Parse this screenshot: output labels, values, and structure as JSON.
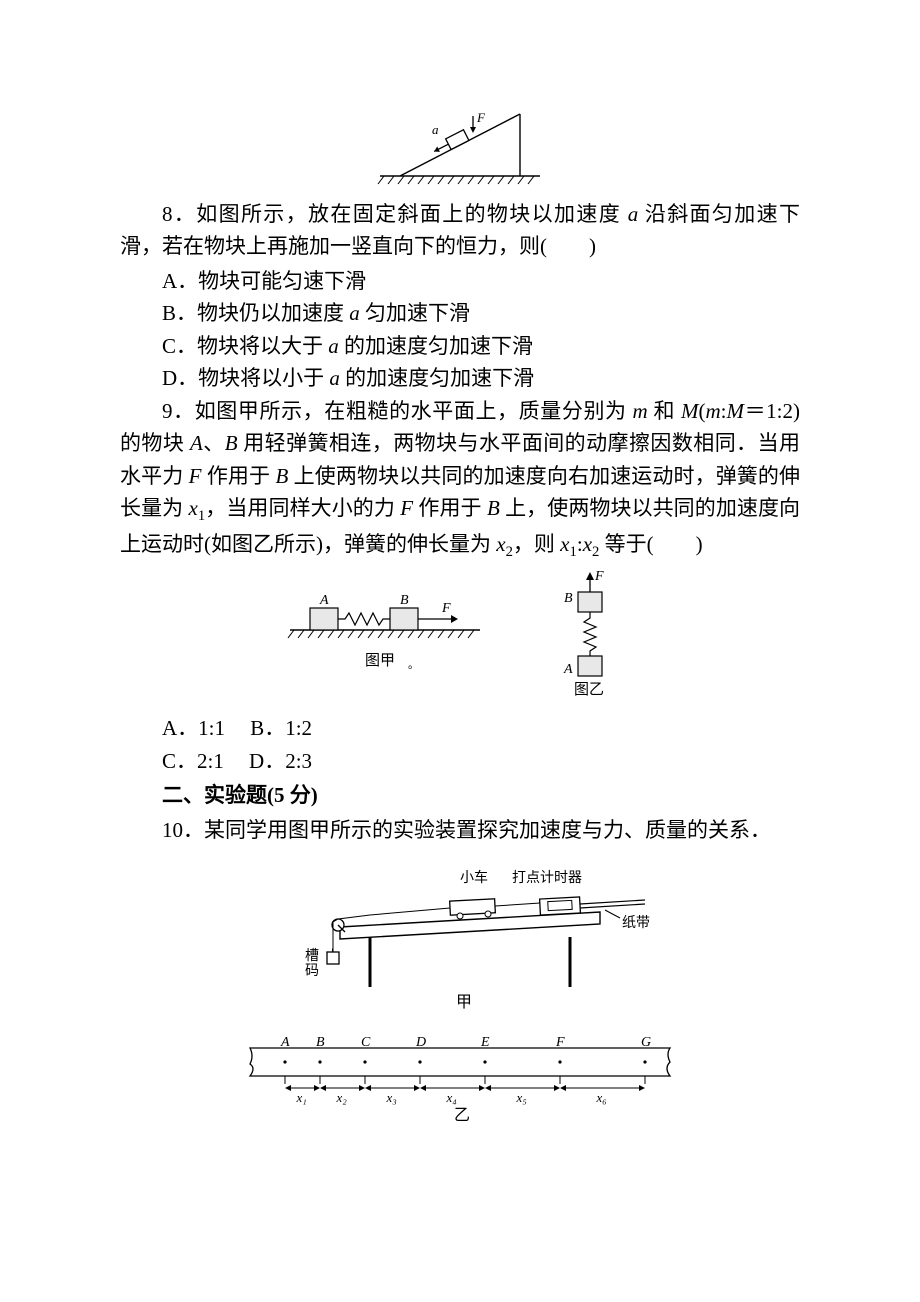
{
  "colors": {
    "text": "#000000",
    "background": "#ffffff",
    "stroke": "#000000",
    "fill_gray": "#ffffff"
  },
  "fonts": {
    "body_family": "SimSun, serif",
    "body_size_pt": 16,
    "caption_size_pt": 13,
    "italic_family": "Times New Roman, serif"
  },
  "fig8": {
    "labels": {
      "a": "a",
      "F": "F"
    }
  },
  "q8": {
    "stem_prefix": "8．如图所示，放在固定斜面上的物块以加速度 ",
    "a": "a",
    "stem_mid": " 沿斜面匀加速下滑，若在物块上再施加一竖直向下的恒力，则(　　)",
    "A_prefix": "A．物块可能匀速下滑",
    "B_prefix": "B．物块仍以加速度 ",
    "B_suffix": " 匀加速下滑",
    "C_prefix": "C．物块将以大于 ",
    "C_suffix": " 的加速度匀加速下滑",
    "D_prefix": "D．物块将以小于 ",
    "D_suffix": " 的加速度匀加速下滑"
  },
  "q9": {
    "p1": "9．如图甲所示，在粗糙的水平面上，质量分别为 ",
    "m": "m",
    "and": " 和 ",
    "M": "M",
    "ratio_open": "(",
    "ratio_body": ":",
    "ratio_val": "＝1:2)",
    "p2": "的物块 ",
    "Aname": "A",
    "p3": "、",
    "Bname": "B",
    "p4": " 用轻弹簧相连，两物块与水平面间的动摩擦因数相同．当用水平力 ",
    "F": "F",
    "p5": " 作用于 ",
    "p6": " 上使两物块以共同的加速度向右加速运动时，弹簧的伸长量为 ",
    "x1": "x",
    "sub1": "1",
    "p7": "，当用同样大小的力 ",
    "p8": " 作用于 ",
    "p9": " 上，使两物块以共同的加速度向上运动时(如图乙所示)，弹簧的伸长量为 ",
    "x2": "x",
    "sub2": "2",
    "p10": "，则 ",
    "p11": " 等于(　　)",
    "A": "A．1:1",
    "B": "B．1:2",
    "C": "C．2:1",
    "D": "D．2:3"
  },
  "fig9": {
    "A": "A",
    "B": "B",
    "F": "F",
    "cap1": "图甲",
    "cap2": "图乙",
    "dot": "。"
  },
  "section2": "二、实验题(5 分)",
  "q10": {
    "stem": "10．某同学用图甲所示的实验装置探究加速度与力、质量的关系．"
  },
  "fig10a": {
    "car": "小车",
    "timer": "打点计时器",
    "tape": "纸带",
    "weight1": "槽",
    "weight2": "码",
    "cap": "甲"
  },
  "fig10b": {
    "pts": [
      "A",
      "B",
      "C",
      "D",
      "E",
      "F",
      "G"
    ],
    "xs": [
      "x₁",
      "x₂",
      "x₃",
      "x₄",
      "x₅",
      "x₆"
    ],
    "cap": "乙"
  }
}
